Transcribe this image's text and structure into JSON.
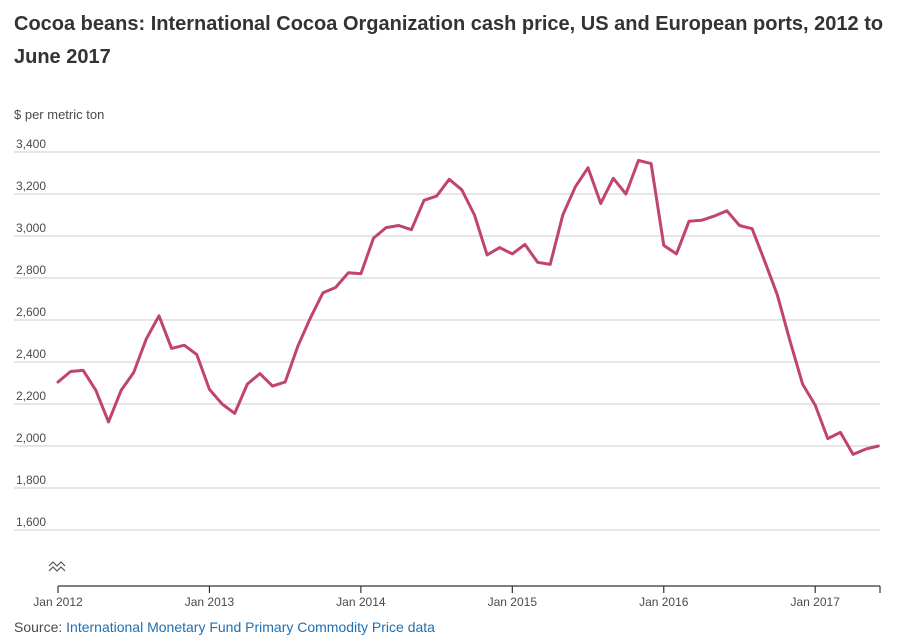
{
  "title": "Cocoa beans: International Cocoa Organization cash price, US and European ports, 2012 to June 2017",
  "ylabel": "$ per metric ton",
  "source": {
    "prefix": "Source: ",
    "link_text": "International Monetary Fund Primary Commodity Price data"
  },
  "colors": {
    "line": "#c0446f",
    "grid": "#cccccc",
    "text": "#333333",
    "link": "#1f6fb2"
  },
  "chart_data": {
    "type": "line",
    "ylabel": "$ per metric ton",
    "ylim": [
      1400,
      3400
    ],
    "yticks": [
      1600,
      1800,
      2000,
      2200,
      2400,
      2600,
      2800,
      3000,
      3200,
      3400
    ],
    "ytick_labels": [
      "1,600",
      "1,800",
      "2,000",
      "2,200",
      "2,400",
      "2,600",
      "2,800",
      "3,000",
      "3,200",
      "3,400"
    ],
    "y_axis_break": true,
    "xticks": [
      "Jan 2012",
      "Jan 2013",
      "Jan 2014",
      "Jan 2015",
      "Jan 2016",
      "Jan 2017"
    ],
    "grid": true,
    "x": [
      "2012-01",
      "2012-02",
      "2012-03",
      "2012-04",
      "2012-05",
      "2012-06",
      "2012-07",
      "2012-08",
      "2012-09",
      "2012-10",
      "2012-11",
      "2012-12",
      "2013-01",
      "2013-02",
      "2013-03",
      "2013-04",
      "2013-05",
      "2013-06",
      "2013-07",
      "2013-08",
      "2013-09",
      "2013-10",
      "2013-11",
      "2013-12",
      "2014-01",
      "2014-02",
      "2014-03",
      "2014-04",
      "2014-05",
      "2014-06",
      "2014-07",
      "2014-08",
      "2014-09",
      "2014-10",
      "2014-11",
      "2014-12",
      "2015-01",
      "2015-02",
      "2015-03",
      "2015-04",
      "2015-05",
      "2015-06",
      "2015-07",
      "2015-08",
      "2015-09",
      "2015-10",
      "2015-11",
      "2015-12",
      "2016-01",
      "2016-02",
      "2016-03",
      "2016-04",
      "2016-05",
      "2016-06",
      "2016-07",
      "2016-08",
      "2016-09",
      "2016-10",
      "2016-11",
      "2016-12",
      "2017-01",
      "2017-02",
      "2017-03",
      "2017-04",
      "2017-05",
      "2017-06"
    ],
    "series": [
      {
        "values": [
          2305,
          2355,
          2360,
          2265,
          2115,
          2265,
          2350,
          2510,
          2620,
          2465,
          2480,
          2435,
          2270,
          2200,
          2155,
          2295,
          2345,
          2285,
          2305,
          2475,
          2610,
          2730,
          2755,
          2825,
          2820,
          2990,
          3040,
          3050,
          3030,
          3170,
          3190,
          3270,
          3220,
          3100,
          2910,
          2945,
          2915,
          2960,
          2875,
          2865,
          3100,
          3235,
          3325,
          3155,
          3275,
          3200,
          3360,
          3345,
          2955,
          2915,
          3070,
          3075,
          3095,
          3120,
          3050,
          3035,
          2880,
          2720,
          2500,
          2295,
          2195,
          2035,
          2065,
          1960,
          1985,
          2000
        ]
      }
    ]
  }
}
